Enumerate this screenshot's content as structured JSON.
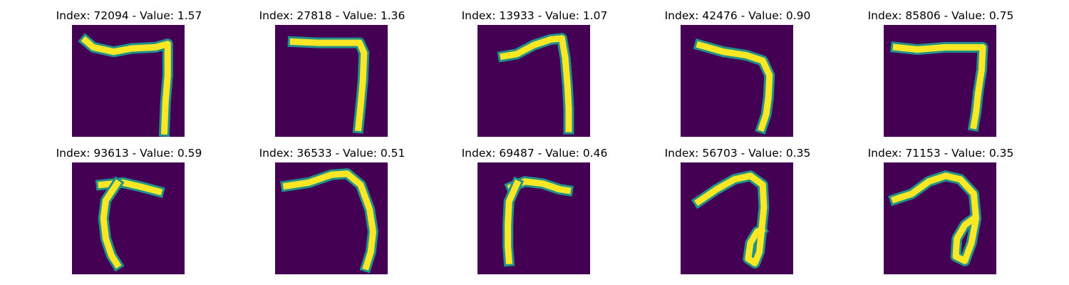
{
  "figure": {
    "colormap": "viridis",
    "background_color": "#440154",
    "stroke_color": "#fde725",
    "edge_color": "#21918c"
  },
  "panels": [
    {
      "title": "Index: 72094 - Value: 1.57",
      "stroke": [
        [
          [
            0.12,
            0.14
          ],
          [
            0.19,
            0.2
          ],
          [
            0.37,
            0.24
          ],
          [
            0.53,
            0.21
          ],
          [
            0.74,
            0.2
          ],
          [
            0.85,
            0.17
          ],
          [
            0.85,
            0.45
          ],
          [
            0.83,
            0.7
          ],
          [
            0.82,
            0.95
          ]
        ]
      ]
    },
    {
      "title": "Index: 27818 - Value: 1.36",
      "stroke": [
        [
          [
            0.16,
            0.15
          ],
          [
            0.38,
            0.16
          ],
          [
            0.6,
            0.16
          ],
          [
            0.75,
            0.16
          ],
          [
            0.79,
            0.25
          ],
          [
            0.78,
            0.5
          ],
          [
            0.76,
            0.72
          ],
          [
            0.74,
            0.92
          ]
        ]
      ]
    },
    {
      "title": "Index: 13933 - Value: 1.07",
      "stroke": [
        [
          [
            0.23,
            0.28
          ],
          [
            0.35,
            0.26
          ],
          [
            0.5,
            0.18
          ],
          [
            0.65,
            0.13
          ],
          [
            0.75,
            0.12
          ],
          [
            0.78,
            0.3
          ],
          [
            0.8,
            0.55
          ],
          [
            0.81,
            0.75
          ],
          [
            0.81,
            0.93
          ]
        ]
      ]
    },
    {
      "title": "Index: 42476 - Value: 0.90",
      "stroke": [
        [
          [
            0.17,
            0.18
          ],
          [
            0.38,
            0.24
          ],
          [
            0.58,
            0.27
          ],
          [
            0.73,
            0.32
          ],
          [
            0.79,
            0.45
          ],
          [
            0.78,
            0.65
          ],
          [
            0.76,
            0.8
          ],
          [
            0.72,
            0.92
          ]
        ]
      ]
    },
    {
      "title": "Index: 85806 - Value: 0.75",
      "stroke": [
        [
          [
            0.11,
            0.2
          ],
          [
            0.3,
            0.22
          ],
          [
            0.55,
            0.2
          ],
          [
            0.72,
            0.2
          ],
          [
            0.88,
            0.2
          ],
          [
            0.87,
            0.4
          ],
          [
            0.84,
            0.6
          ],
          [
            0.82,
            0.78
          ],
          [
            0.8,
            0.9
          ]
        ]
      ]
    },
    {
      "title": "Index: 93613 - Value: 0.59",
      "stroke": [
        [
          [
            0.26,
            0.2
          ],
          [
            0.45,
            0.18
          ],
          [
            0.62,
            0.22
          ],
          [
            0.77,
            0.26
          ]
        ],
        [
          [
            0.4,
            0.19
          ],
          [
            0.3,
            0.34
          ],
          [
            0.28,
            0.5
          ],
          [
            0.3,
            0.68
          ],
          [
            0.35,
            0.83
          ],
          [
            0.4,
            0.91
          ]
        ]
      ]
    },
    {
      "title": "Index: 36533 - Value: 0.51",
      "stroke": [
        [
          [
            0.1,
            0.21
          ],
          [
            0.3,
            0.18
          ],
          [
            0.5,
            0.11
          ],
          [
            0.64,
            0.1
          ],
          [
            0.76,
            0.2
          ],
          [
            0.84,
            0.42
          ],
          [
            0.87,
            0.62
          ],
          [
            0.85,
            0.8
          ],
          [
            0.81,
            0.93
          ]
        ]
      ]
    },
    {
      "title": "Index: 69487 - Value: 0.46",
      "stroke": [
        [
          [
            0.3,
            0.22
          ],
          [
            0.42,
            0.17
          ],
          [
            0.58,
            0.19
          ],
          [
            0.73,
            0.24
          ],
          [
            0.8,
            0.25
          ]
        ],
        [
          [
            0.35,
            0.19
          ],
          [
            0.28,
            0.35
          ],
          [
            0.27,
            0.55
          ],
          [
            0.27,
            0.75
          ],
          [
            0.28,
            0.88
          ]
        ]
      ]
    },
    {
      "title": "Index: 56703 - Value: 0.35",
      "stroke": [
        [
          [
            0.16,
            0.35
          ],
          [
            0.32,
            0.24
          ],
          [
            0.48,
            0.15
          ],
          [
            0.62,
            0.12
          ],
          [
            0.73,
            0.2
          ],
          [
            0.74,
            0.4
          ],
          [
            0.72,
            0.6
          ],
          [
            0.7,
            0.8
          ],
          [
            0.66,
            0.9
          ],
          [
            0.6,
            0.86
          ],
          [
            0.62,
            0.72
          ],
          [
            0.68,
            0.62
          ],
          [
            0.72,
            0.6
          ]
        ]
      ]
    },
    {
      "title": "Index: 71153 - Value: 0.35",
      "stroke": [
        [
          [
            0.1,
            0.33
          ],
          [
            0.25,
            0.28
          ],
          [
            0.4,
            0.17
          ],
          [
            0.55,
            0.12
          ],
          [
            0.68,
            0.15
          ],
          [
            0.8,
            0.28
          ],
          [
            0.82,
            0.5
          ],
          [
            0.78,
            0.72
          ],
          [
            0.72,
            0.88
          ],
          [
            0.64,
            0.84
          ],
          [
            0.65,
            0.68
          ],
          [
            0.72,
            0.56
          ],
          [
            0.8,
            0.5
          ]
        ]
      ]
    }
  ]
}
